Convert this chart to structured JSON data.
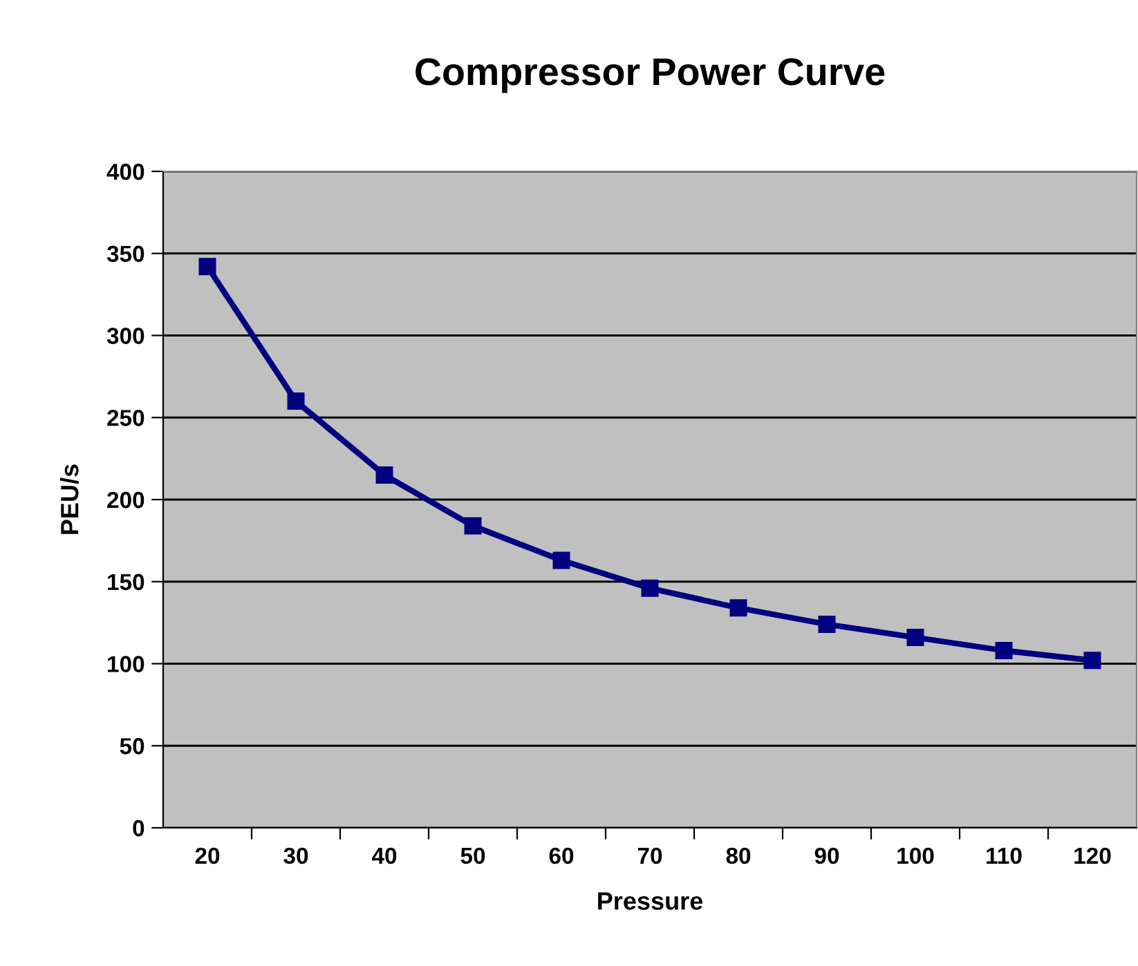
{
  "chart_data": {
    "type": "line",
    "title": "Compressor Power Curve",
    "xlabel": "Pressure",
    "ylabel": "PEU/s",
    "categories": [
      "20",
      "30",
      "40",
      "50",
      "60",
      "70",
      "80",
      "90",
      "100",
      "110",
      "120"
    ],
    "series": [
      {
        "color": "#000080",
        "values": [
          342,
          260,
          215,
          184,
          163,
          146,
          134,
          124,
          116,
          108,
          102
        ]
      }
    ],
    "ylim": [
      0,
      400
    ],
    "yticks": [
      0,
      50,
      100,
      150,
      200,
      250,
      300,
      350,
      400
    ],
    "grid": "y",
    "marker": "square",
    "line_style": "solid"
  }
}
